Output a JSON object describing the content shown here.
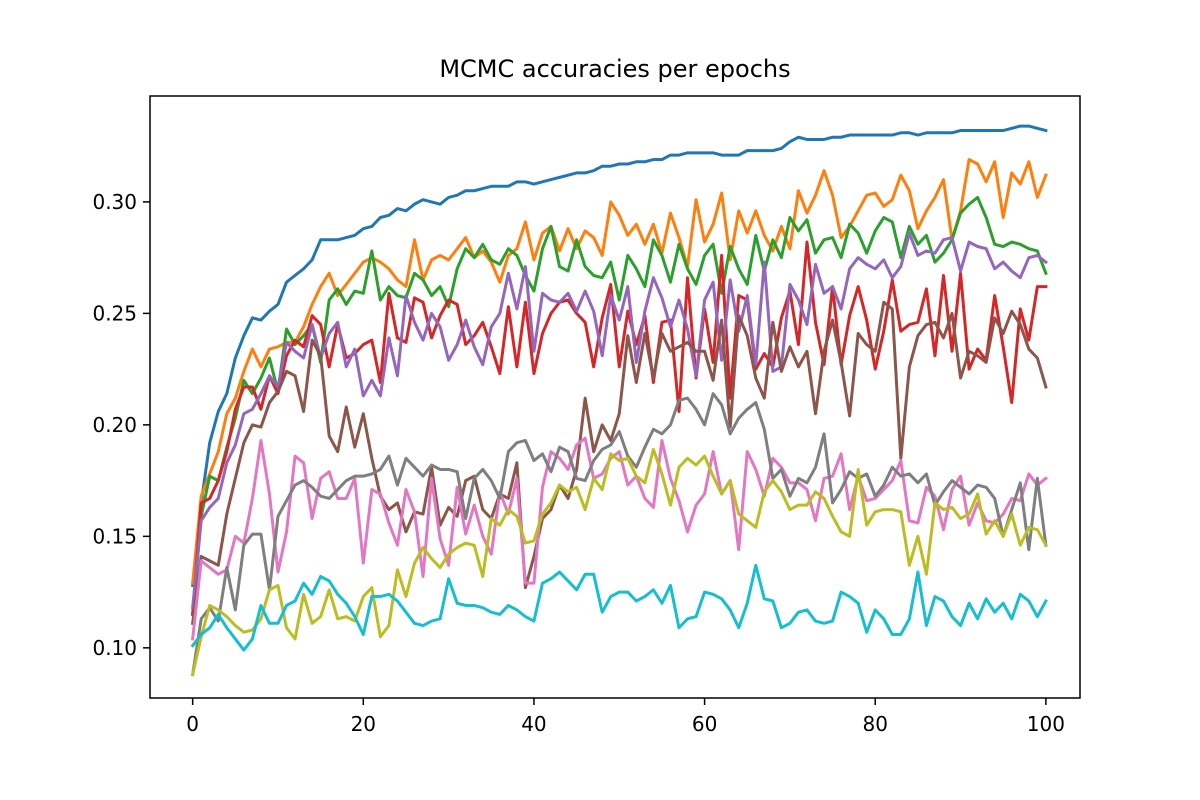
{
  "chart_data": {
    "type": "line",
    "title": "MCMC accuracies per epochs",
    "xlabel": "",
    "ylabel": "",
    "xlim": [
      -5,
      104
    ],
    "ylim": [
      0.0775,
      0.3475
    ],
    "x_ticks": [
      0,
      20,
      40,
      60,
      80,
      100
    ],
    "y_ticks": [
      0.1,
      0.15,
      0.2,
      0.25,
      0.3
    ],
    "x_tick_labels": [
      "0",
      "20",
      "40",
      "60",
      "80",
      "100"
    ],
    "y_tick_labels": [
      "0.10",
      "0.15",
      "0.20",
      "0.25",
      "0.30"
    ],
    "grid": false,
    "legend": "none",
    "x_start": 0,
    "x_step": 1,
    "series": [
      {
        "color": "#1f77b4",
        "values": [
          0.128,
          0.165,
          0.192,
          0.206,
          0.214,
          0.23,
          0.24,
          0.248,
          0.247,
          0.251,
          0.254,
          0.264,
          0.267,
          0.27,
          0.274,
          0.283,
          0.283,
          0.283,
          0.284,
          0.285,
          0.288,
          0.289,
          0.293,
          0.294,
          0.297,
          0.296,
          0.299,
          0.301,
          0.3,
          0.299,
          0.302,
          0.303,
          0.305,
          0.305,
          0.306,
          0.307,
          0.307,
          0.307,
          0.309,
          0.309,
          0.308,
          0.309,
          0.31,
          0.311,
          0.312,
          0.313,
          0.313,
          0.314,
          0.316,
          0.316,
          0.317,
          0.317,
          0.318,
          0.318,
          0.319,
          0.319,
          0.321,
          0.321,
          0.322,
          0.322,
          0.322,
          0.322,
          0.321,
          0.321,
          0.321,
          0.323,
          0.323,
          0.323,
          0.323,
          0.324,
          0.327,
          0.329,
          0.328,
          0.328,
          0.328,
          0.329,
          0.329,
          0.33,
          0.33,
          0.33,
          0.33,
          0.33,
          0.33,
          0.331,
          0.331,
          0.33,
          0.331,
          0.331,
          0.331,
          0.331,
          0.332,
          0.332,
          0.332,
          0.332,
          0.332,
          0.332,
          0.333,
          0.334,
          0.334,
          0.333,
          0.332
        ]
      },
      {
        "color": "#ff7f0e",
        "values": [
          0.129,
          0.168,
          0.178,
          0.188,
          0.205,
          0.212,
          0.224,
          0.234,
          0.226,
          0.234,
          0.235,
          0.237,
          0.237,
          0.244,
          0.254,
          0.262,
          0.268,
          0.258,
          0.263,
          0.268,
          0.273,
          0.275,
          0.273,
          0.27,
          0.265,
          0.262,
          0.283,
          0.265,
          0.274,
          0.276,
          0.274,
          0.279,
          0.284,
          0.275,
          0.278,
          0.273,
          0.264,
          0.276,
          0.279,
          0.291,
          0.274,
          0.286,
          0.289,
          0.278,
          0.288,
          0.279,
          0.287,
          0.284,
          0.276,
          0.3,
          0.294,
          0.285,
          0.29,
          0.281,
          0.29,
          0.277,
          0.295,
          0.284,
          0.271,
          0.301,
          0.282,
          0.29,
          0.304,
          0.274,
          0.296,
          0.286,
          0.296,
          0.285,
          0.278,
          0.289,
          0.279,
          0.305,
          0.295,
          0.303,
          0.314,
          0.303,
          0.284,
          0.289,
          0.296,
          0.303,
          0.304,
          0.298,
          0.301,
          0.312,
          0.305,
          0.288,
          0.296,
          0.302,
          0.31,
          0.283,
          0.296,
          0.319,
          0.317,
          0.309,
          0.318,
          0.293,
          0.313,
          0.308,
          0.318,
          0.302,
          0.312
        ]
      },
      {
        "color": "#2ca02c",
        "values": [
          0.115,
          0.159,
          0.177,
          0.175,
          0.19,
          0.203,
          0.22,
          0.214,
          0.221,
          0.23,
          0.215,
          0.243,
          0.236,
          0.24,
          0.245,
          0.228,
          0.256,
          0.261,
          0.254,
          0.26,
          0.259,
          0.278,
          0.256,
          0.262,
          0.258,
          0.257,
          0.268,
          0.265,
          0.258,
          0.262,
          0.253,
          0.27,
          0.279,
          0.275,
          0.281,
          0.274,
          0.272,
          0.279,
          0.276,
          0.267,
          0.26,
          0.279,
          0.289,
          0.271,
          0.269,
          0.283,
          0.271,
          0.267,
          0.266,
          0.273,
          0.256,
          0.276,
          0.27,
          0.262,
          0.283,
          0.276,
          0.264,
          0.281,
          0.27,
          0.263,
          0.276,
          0.281,
          0.259,
          0.28,
          0.27,
          0.263,
          0.285,
          0.269,
          0.283,
          0.275,
          0.293,
          0.287,
          0.292,
          0.277,
          0.283,
          0.284,
          0.275,
          0.29,
          0.286,
          0.277,
          0.287,
          0.293,
          0.291,
          0.275,
          0.289,
          0.281,
          0.285,
          0.273,
          0.277,
          0.283,
          0.295,
          0.299,
          0.302,
          0.293,
          0.281,
          0.28,
          0.282,
          0.281,
          0.279,
          0.278,
          0.268
        ]
      },
      {
        "color": "#d62728",
        "values": [
          0.115,
          0.165,
          0.167,
          0.175,
          0.188,
          0.207,
          0.217,
          0.217,
          0.207,
          0.222,
          0.214,
          0.231,
          0.238,
          0.235,
          0.249,
          0.245,
          0.226,
          0.245,
          0.23,
          0.232,
          0.236,
          0.238,
          0.219,
          0.259,
          0.239,
          0.237,
          0.257,
          0.255,
          0.239,
          0.249,
          0.256,
          0.254,
          0.236,
          0.24,
          0.246,
          0.235,
          0.223,
          0.253,
          0.226,
          0.255,
          0.223,
          0.241,
          0.25,
          0.255,
          0.256,
          0.25,
          0.246,
          0.226,
          0.248,
          0.263,
          0.226,
          0.251,
          0.236,
          0.249,
          0.219,
          0.246,
          0.247,
          0.206,
          0.266,
          0.221,
          0.252,
          0.228,
          0.276,
          0.212,
          0.258,
          0.256,
          0.225,
          0.232,
          0.226,
          0.248,
          0.26,
          0.236,
          0.282,
          0.246,
          0.227,
          0.262,
          0.227,
          0.249,
          0.262,
          0.247,
          0.225,
          0.242,
          0.265,
          0.242,
          0.245,
          0.246,
          0.261,
          0.231,
          0.267,
          0.233,
          0.268,
          0.225,
          0.234,
          0.229,
          0.258,
          0.235,
          0.21,
          0.252,
          0.238,
          0.262,
          0.262
        ]
      },
      {
        "color": "#9467bd",
        "values": [
          0.118,
          0.157,
          0.163,
          0.167,
          0.183,
          0.191,
          0.205,
          0.207,
          0.214,
          0.222,
          0.217,
          0.237,
          0.233,
          0.23,
          0.245,
          0.23,
          0.241,
          0.246,
          0.226,
          0.234,
          0.213,
          0.22,
          0.213,
          0.239,
          0.222,
          0.258,
          0.246,
          0.238,
          0.25,
          0.244,
          0.229,
          0.236,
          0.247,
          0.235,
          0.227,
          0.244,
          0.25,
          0.268,
          0.252,
          0.271,
          0.233,
          0.259,
          0.256,
          0.255,
          0.259,
          0.251,
          0.26,
          0.251,
          0.231,
          0.258,
          0.247,
          0.262,
          0.228,
          0.251,
          0.266,
          0.257,
          0.244,
          0.256,
          0.243,
          0.222,
          0.256,
          0.264,
          0.229,
          0.265,
          0.242,
          0.258,
          0.227,
          0.273,
          0.224,
          0.226,
          0.263,
          0.256,
          0.245,
          0.272,
          0.259,
          0.262,
          0.252,
          0.27,
          0.275,
          0.272,
          0.27,
          0.274,
          0.266,
          0.271,
          0.286,
          0.276,
          0.278,
          0.277,
          0.283,
          0.284,
          0.269,
          0.282,
          0.28,
          0.279,
          0.27,
          0.273,
          0.269,
          0.266,
          0.275,
          0.276,
          0.273
        ]
      },
      {
        "color": "#8c564b",
        "values": [
          0.111,
          0.141,
          0.139,
          0.137,
          0.16,
          0.176,
          0.192,
          0.2,
          0.199,
          0.21,
          0.215,
          0.224,
          0.222,
          0.206,
          0.238,
          0.231,
          0.195,
          0.188,
          0.208,
          0.19,
          0.205,
          0.185,
          0.168,
          0.162,
          0.165,
          0.152,
          0.161,
          0.16,
          0.181,
          0.155,
          0.163,
          0.159,
          0.175,
          0.177,
          0.162,
          0.158,
          0.169,
          0.167,
          0.183,
          0.127,
          0.141,
          0.158,
          0.162,
          0.173,
          0.167,
          0.18,
          0.212,
          0.188,
          0.2,
          0.193,
          0.205,
          0.24,
          0.219,
          0.241,
          0.221,
          0.241,
          0.233,
          0.235,
          0.237,
          0.233,
          0.233,
          0.22,
          0.247,
          0.199,
          0.249,
          0.24,
          0.221,
          0.212,
          0.246,
          0.224,
          0.235,
          0.226,
          0.233,
          0.205,
          0.233,
          0.247,
          0.228,
          0.204,
          0.241,
          0.236,
          0.233,
          0.255,
          0.252,
          0.185,
          0.226,
          0.24,
          0.245,
          0.246,
          0.239,
          0.25,
          0.221,
          0.233,
          0.231,
          0.228,
          0.248,
          0.241,
          0.251,
          0.245,
          0.234,
          0.23,
          0.217
        ]
      },
      {
        "color": "#e377c2",
        "values": [
          0.104,
          0.139,
          0.136,
          0.133,
          0.135,
          0.15,
          0.147,
          0.167,
          0.193,
          0.169,
          0.134,
          0.152,
          0.186,
          0.183,
          0.158,
          0.176,
          0.179,
          0.167,
          0.167,
          0.176,
          0.138,
          0.171,
          0.169,
          0.156,
          0.146,
          0.171,
          0.161,
          0.132,
          0.176,
          0.149,
          0.137,
          0.172,
          0.151,
          0.164,
          0.15,
          0.142,
          0.17,
          0.16,
          0.176,
          0.129,
          0.129,
          0.172,
          0.188,
          0.185,
          0.18,
          0.191,
          0.194,
          0.176,
          0.178,
          0.185,
          0.188,
          0.173,
          0.177,
          0.167,
          0.163,
          0.193,
          0.176,
          0.166,
          0.152,
          0.164,
          0.169,
          0.188,
          0.169,
          0.175,
          0.144,
          0.188,
          0.18,
          0.168,
          0.185,
          0.181,
          0.174,
          0.174,
          0.171,
          0.157,
          0.176,
          0.177,
          0.187,
          0.162,
          0.177,
          0.166,
          0.167,
          0.171,
          0.175,
          0.184,
          0.157,
          0.156,
          0.172,
          0.168,
          0.153,
          0.171,
          0.177,
          0.155,
          0.165,
          0.157,
          0.156,
          0.16,
          0.167,
          0.166,
          0.178,
          0.173,
          0.176
        ]
      },
      {
        "color": "#7f7f7f",
        "values": [
          0.088,
          0.113,
          0.118,
          0.112,
          0.136,
          0.117,
          0.146,
          0.151,
          0.151,
          0.126,
          0.159,
          0.166,
          0.173,
          0.175,
          0.172,
          0.168,
          0.167,
          0.171,
          0.175,
          0.177,
          0.177,
          0.178,
          0.18,
          0.186,
          0.173,
          0.185,
          0.181,
          0.177,
          0.182,
          0.18,
          0.18,
          0.179,
          0.158,
          0.176,
          0.18,
          0.175,
          0.167,
          0.188,
          0.192,
          0.193,
          0.184,
          0.187,
          0.179,
          0.19,
          0.188,
          0.176,
          0.175,
          0.184,
          0.189,
          0.191,
          0.197,
          0.186,
          0.181,
          0.19,
          0.198,
          0.196,
          0.2,
          0.211,
          0.212,
          0.207,
          0.2,
          0.214,
          0.209,
          0.196,
          0.203,
          0.207,
          0.21,
          0.198,
          0.176,
          0.18,
          0.168,
          0.176,
          0.174,
          0.181,
          0.196,
          0.165,
          0.171,
          0.179,
          0.176,
          0.178,
          0.168,
          0.173,
          0.181,
          0.177,
          0.178,
          0.174,
          0.178,
          0.164,
          0.17,
          0.175,
          0.172,
          0.169,
          0.173,
          0.172,
          0.167,
          0.15,
          0.162,
          0.174,
          0.144,
          0.176,
          0.146
        ]
      },
      {
        "color": "#bcbd22",
        "values": [
          0.088,
          0.105,
          0.119,
          0.117,
          0.114,
          0.11,
          0.107,
          0.108,
          0.113,
          0.126,
          0.128,
          0.109,
          0.104,
          0.124,
          0.111,
          0.114,
          0.126,
          0.113,
          0.114,
          0.112,
          0.123,
          0.127,
          0.105,
          0.11,
          0.135,
          0.123,
          0.138,
          0.145,
          0.14,
          0.136,
          0.142,
          0.145,
          0.147,
          0.146,
          0.132,
          0.158,
          0.155,
          0.162,
          0.159,
          0.147,
          0.148,
          0.16,
          0.165,
          0.173,
          0.17,
          0.172,
          0.162,
          0.176,
          0.171,
          0.187,
          0.184,
          0.185,
          0.177,
          0.174,
          0.189,
          0.178,
          0.164,
          0.181,
          0.185,
          0.182,
          0.186,
          0.177,
          0.169,
          0.175,
          0.16,
          0.157,
          0.154,
          0.17,
          0.175,
          0.17,
          0.162,
          0.164,
          0.164,
          0.17,
          0.167,
          0.159,
          0.152,
          0.15,
          0.18,
          0.155,
          0.161,
          0.162,
          0.162,
          0.161,
          0.137,
          0.15,
          0.133,
          0.165,
          0.162,
          0.163,
          0.158,
          0.16,
          0.169,
          0.151,
          0.157,
          0.15,
          0.16,
          0.146,
          0.154,
          0.153,
          0.146
        ]
      },
      {
        "color": "#17becf",
        "values": [
          0.101,
          0.106,
          0.109,
          0.115,
          0.109,
          0.104,
          0.099,
          0.104,
          0.119,
          0.111,
          0.111,
          0.119,
          0.121,
          0.129,
          0.124,
          0.132,
          0.13,
          0.124,
          0.12,
          0.114,
          0.106,
          0.123,
          0.123,
          0.124,
          0.121,
          0.116,
          0.111,
          0.11,
          0.112,
          0.113,
          0.131,
          0.12,
          0.119,
          0.119,
          0.118,
          0.116,
          0.115,
          0.119,
          0.117,
          0.114,
          0.112,
          0.129,
          0.131,
          0.134,
          0.13,
          0.126,
          0.133,
          0.133,
          0.116,
          0.123,
          0.125,
          0.125,
          0.121,
          0.123,
          0.126,
          0.12,
          0.128,
          0.109,
          0.113,
          0.114,
          0.125,
          0.124,
          0.122,
          0.117,
          0.109,
          0.12,
          0.137,
          0.122,
          0.121,
          0.109,
          0.111,
          0.116,
          0.117,
          0.112,
          0.111,
          0.112,
          0.125,
          0.123,
          0.12,
          0.107,
          0.117,
          0.113,
          0.106,
          0.106,
          0.113,
          0.134,
          0.11,
          0.123,
          0.121,
          0.114,
          0.11,
          0.12,
          0.113,
          0.122,
          0.116,
          0.12,
          0.113,
          0.124,
          0.121,
          0.114,
          0.121
        ]
      }
    ]
  }
}
